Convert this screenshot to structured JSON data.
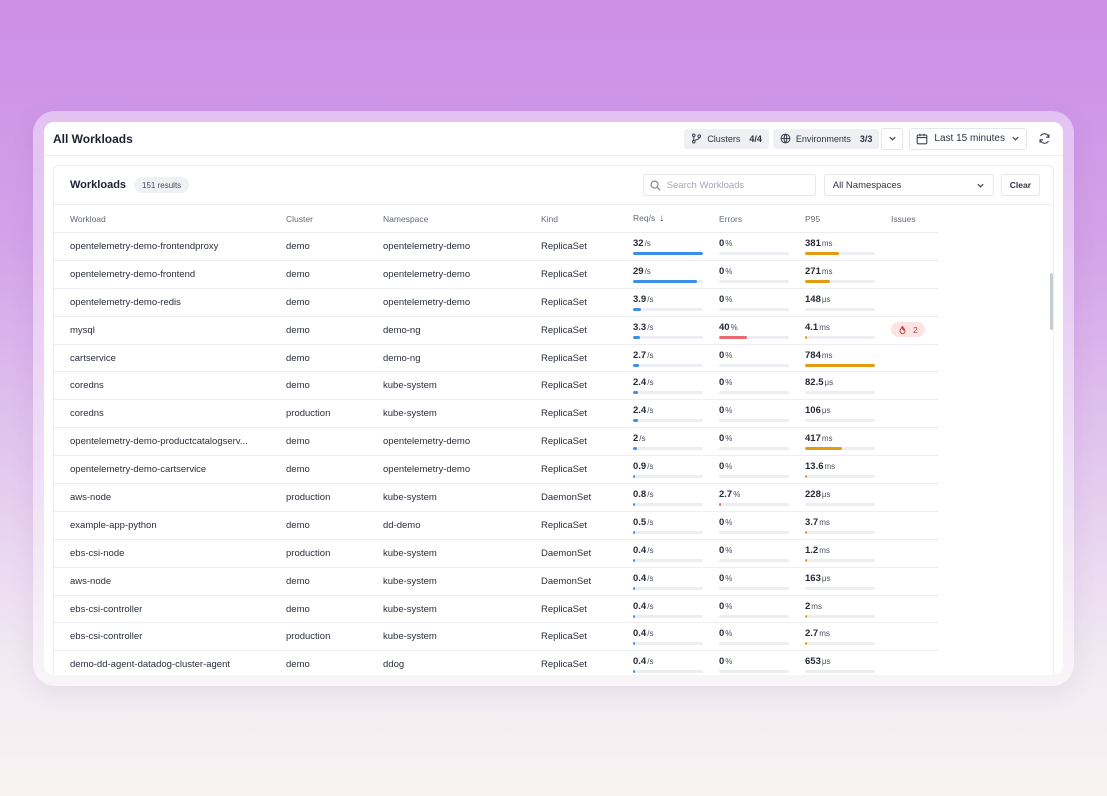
{
  "app": {
    "title": "All Workloads"
  },
  "topbar": {
    "clusters": {
      "label": "Clusters",
      "count": "4/4",
      "icon": "git-branch-icon"
    },
    "environments": {
      "label": "Environments",
      "count": "3/3",
      "icon": "globe-icon"
    },
    "time_range": "Last 15 minutes"
  },
  "panel": {
    "title": "Workloads",
    "results": "151 results",
    "search_placeholder": "Search Workloads",
    "namespace_select": "All Namespaces",
    "clear_label": "Clear"
  },
  "columns": {
    "workload": "Workload",
    "cluster": "Cluster",
    "namespace": "Namespace",
    "kind": "Kind",
    "reqs": "Req/s",
    "errors": "Errors",
    "p95": "P95",
    "issues": "Issues"
  },
  "colors": {
    "req_bar": "#3b8fe8",
    "p95_bar": "#e39b12",
    "error_bar": "#ea6b70",
    "issue": "#c2383c"
  },
  "rows": [
    {
      "workload": "opentelemetry-demo-frontendproxy",
      "cluster": "demo",
      "namespace": "opentelemetry-demo",
      "kind": "ReplicaSet",
      "req": "32",
      "req_unit": "/s",
      "req_fill": 1.0,
      "err": "0",
      "err_unit": "%",
      "err_fill": 0,
      "p95": "381",
      "p95_unit": "ms",
      "p95_fill": 0.49,
      "issues": ""
    },
    {
      "workload": "opentelemetry-demo-frontend",
      "cluster": "demo",
      "namespace": "opentelemetry-demo",
      "kind": "ReplicaSet",
      "req": "29",
      "req_unit": "/s",
      "req_fill": 0.91,
      "err": "0",
      "err_unit": "%",
      "err_fill": 0,
      "p95": "271",
      "p95_unit": "ms",
      "p95_fill": 0.35,
      "issues": ""
    },
    {
      "workload": "opentelemetry-demo-redis",
      "cluster": "demo",
      "namespace": "opentelemetry-demo",
      "kind": "ReplicaSet",
      "req": "3.9",
      "req_unit": "/s",
      "req_fill": 0.12,
      "err": "0",
      "err_unit": "%",
      "err_fill": 0,
      "p95": "148",
      "p95_unit": "μs",
      "p95_fill": 0,
      "issues": ""
    },
    {
      "workload": "mysql",
      "cluster": "demo",
      "namespace": "demo-ng",
      "kind": "ReplicaSet",
      "req": "3.3",
      "req_unit": "/s",
      "req_fill": 0.1,
      "err": "40",
      "err_unit": "%",
      "err_fill": 0.4,
      "p95": "4.1",
      "p95_unit": "ms",
      "p95_fill": 0.005,
      "issues": "2"
    },
    {
      "workload": "cartservice",
      "cluster": "demo",
      "namespace": "demo-ng",
      "kind": "ReplicaSet",
      "req": "2.7",
      "req_unit": "/s",
      "req_fill": 0.085,
      "err": "0",
      "err_unit": "%",
      "err_fill": 0,
      "p95": "784",
      "p95_unit": "ms",
      "p95_fill": 1.0,
      "issues": ""
    },
    {
      "workload": "coredns",
      "cluster": "demo",
      "namespace": "kube-system",
      "kind": "ReplicaSet",
      "req": "2.4",
      "req_unit": "/s",
      "req_fill": 0.075,
      "err": "0",
      "err_unit": "%",
      "err_fill": 0,
      "p95": "82.5",
      "p95_unit": "μs",
      "p95_fill": 0,
      "issues": ""
    },
    {
      "workload": "coredns",
      "cluster": "production",
      "namespace": "kube-system",
      "kind": "ReplicaSet",
      "req": "2.4",
      "req_unit": "/s",
      "req_fill": 0.075,
      "err": "0",
      "err_unit": "%",
      "err_fill": 0,
      "p95": "106",
      "p95_unit": "μs",
      "p95_fill": 0,
      "issues": ""
    },
    {
      "workload": "opentelemetry-demo-productcatalogserv...",
      "cluster": "demo",
      "namespace": "opentelemetry-demo",
      "kind": "ReplicaSet",
      "req": "2",
      "req_unit": "/s",
      "req_fill": 0.063,
      "err": "0",
      "err_unit": "%",
      "err_fill": 0,
      "p95": "417",
      "p95_unit": "ms",
      "p95_fill": 0.53,
      "issues": ""
    },
    {
      "workload": "opentelemetry-demo-cartservice",
      "cluster": "demo",
      "namespace": "opentelemetry-demo",
      "kind": "ReplicaSet",
      "req": "0.9",
      "req_unit": "/s",
      "req_fill": 0.028,
      "err": "0",
      "err_unit": "%",
      "err_fill": 0,
      "p95": "13.6",
      "p95_unit": "ms",
      "p95_fill": 0.017,
      "issues": ""
    },
    {
      "workload": "aws-node",
      "cluster": "production",
      "namespace": "kube-system",
      "kind": "DaemonSet",
      "req": "0.8",
      "req_unit": "/s",
      "req_fill": 0.025,
      "err": "2.7",
      "err_unit": "%",
      "err_fill": 0.027,
      "p95": "228",
      "p95_unit": "μs",
      "p95_fill": 0,
      "issues": ""
    },
    {
      "workload": "example-app-python",
      "cluster": "demo",
      "namespace": "dd-demo",
      "kind": "ReplicaSet",
      "req": "0.5",
      "req_unit": "/s",
      "req_fill": 0.016,
      "err": "0",
      "err_unit": "%",
      "err_fill": 0,
      "p95": "3.7",
      "p95_unit": "ms",
      "p95_fill": 0.005,
      "issues": ""
    },
    {
      "workload": "ebs-csi-node",
      "cluster": "production",
      "namespace": "kube-system",
      "kind": "DaemonSet",
      "req": "0.4",
      "req_unit": "/s",
      "req_fill": 0.0125,
      "err": "0",
      "err_unit": "%",
      "err_fill": 0,
      "p95": "1.2",
      "p95_unit": "ms",
      "p95_fill": 0.0015,
      "issues": ""
    },
    {
      "workload": "aws-node",
      "cluster": "demo",
      "namespace": "kube-system",
      "kind": "DaemonSet",
      "req": "0.4",
      "req_unit": "/s",
      "req_fill": 0.0125,
      "err": "0",
      "err_unit": "%",
      "err_fill": 0,
      "p95": "163",
      "p95_unit": "μs",
      "p95_fill": 0,
      "issues": ""
    },
    {
      "workload": "ebs-csi-controller",
      "cluster": "demo",
      "namespace": "kube-system",
      "kind": "ReplicaSet",
      "req": "0.4",
      "req_unit": "/s",
      "req_fill": 0.0125,
      "err": "0",
      "err_unit": "%",
      "err_fill": 0,
      "p95": "2",
      "p95_unit": "ms",
      "p95_fill": 0.0025,
      "issues": ""
    },
    {
      "workload": "ebs-csi-controller",
      "cluster": "production",
      "namespace": "kube-system",
      "kind": "ReplicaSet",
      "req": "0.4",
      "req_unit": "/s",
      "req_fill": 0.0125,
      "err": "0",
      "err_unit": "%",
      "err_fill": 0,
      "p95": "2.7",
      "p95_unit": "ms",
      "p95_fill": 0.0035,
      "issues": ""
    },
    {
      "workload": "demo-dd-agent-datadog-cluster-agent",
      "cluster": "demo",
      "namespace": "ddog",
      "kind": "ReplicaSet",
      "req": "0.4",
      "req_unit": "/s",
      "req_fill": 0.0125,
      "err": "0",
      "err_unit": "%",
      "err_fill": 0,
      "p95": "653",
      "p95_unit": "μs",
      "p95_fill": 0,
      "issues": ""
    }
  ]
}
